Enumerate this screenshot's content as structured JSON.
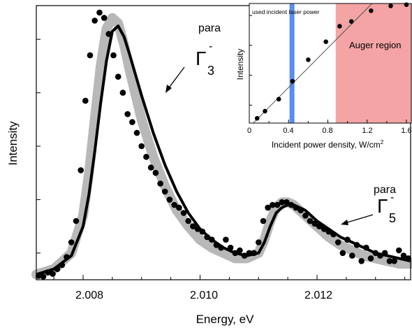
{
  "chart_data": [
    {
      "type": "line",
      "xlabel": "Energy, eV",
      "ylabel": "Intensity",
      "xlim": [
        2.0072,
        2.0136
      ],
      "ylim": [
        0,
        1.0
      ],
      "x_ticks": [
        "2.008",
        "2.010",
        "2.012"
      ],
      "x_tick_values": [
        2.008,
        2.01,
        2.012
      ],
      "y_tick_labels_shown": false,
      "annotations": [
        {
          "text": "para",
          "symbol": "Γ",
          "superscript": "-",
          "subscript": "3"
        },
        {
          "text": "para",
          "symbol": "Γ",
          "superscript": "-",
          "subscript": "5"
        }
      ],
      "colors": {
        "data_points": "#000000",
        "fit_line": "#000000",
        "model_band": "#b8b8b8"
      },
      "series": [
        {
          "type": "scatter",
          "x": [
            2.00724,
            2.00732,
            2.0074,
            2.00748,
            2.00756,
            2.00764,
            2.00772,
            2.0078,
            2.00788,
            2.00796,
            2.00804,
            2.00812,
            2.0082,
            2.00828,
            2.00836,
            2.00844,
            2.00852,
            2.0086,
            2.00868,
            2.00876,
            2.00884,
            2.00892,
            2.009,
            2.00908,
            2.00916,
            2.00924,
            2.00932,
            2.0094,
            2.00948,
            2.00956,
            2.00964,
            2.00972,
            2.0098,
            2.00988,
            2.00996,
            2.01004,
            2.01012,
            2.0102,
            2.01028,
            2.01036,
            2.01044,
            2.01052,
            2.0106,
            2.01068,
            2.01076,
            2.01084,
            2.01092,
            2.011,
            2.01108,
            2.01116,
            2.01124,
            2.01132,
            2.0114,
            2.01148,
            2.01156,
            2.01164,
            2.01172,
            2.0118,
            2.01188,
            2.01196,
            2.01204,
            2.01212,
            2.0122,
            2.01228,
            2.01236,
            2.01244,
            2.01252,
            2.0126,
            2.01268,
            2.01276,
            2.01284,
            2.01292,
            2.013,
            2.01308,
            2.01316,
            2.01324,
            2.01332,
            2.0134,
            2.01348,
            2.01356
          ],
          "y": [
            0.015,
            0.012,
            0.028,
            0.022,
            0.04,
            0.055,
            0.085,
            0.14,
            0.22,
            0.41,
            0.67,
            0.84,
            0.97,
            1.0,
            0.98,
            0.92,
            0.84,
            0.76,
            0.7,
            0.62,
            0.59,
            0.55,
            0.5,
            0.46,
            0.42,
            0.4,
            0.36,
            0.33,
            0.3,
            0.28,
            0.27,
            0.25,
            0.22,
            0.2,
            0.19,
            0.18,
            0.16,
            0.15,
            0.13,
            0.12,
            0.15,
            0.12,
            0.1,
            0.11,
            0.09,
            0.1,
            0.1,
            0.14,
            0.22,
            0.27,
            0.28,
            0.28,
            0.29,
            0.29,
            0.28,
            0.27,
            0.26,
            0.24,
            0.22,
            0.21,
            0.2,
            0.19,
            0.18,
            0.17,
            0.14,
            0.1,
            0.15,
            0.09,
            0.13,
            0.07,
            0.12,
            0.08,
            0.1,
            0.09,
            0.1,
            0.07,
            0.07,
            0.11,
            0.09,
            0.08
          ]
        },
        {
          "type": "line",
          "x": [
            2.0072,
            2.0075,
            2.0078,
            2.008,
            2.0081,
            2.0082,
            2.0083,
            2.0084,
            2.0085,
            2.0086,
            2.0087,
            2.0088,
            2.009,
            2.0092,
            2.0094,
            2.0096,
            2.0098,
            2.01,
            2.0102,
            2.0104,
            2.0106,
            2.0108,
            2.011,
            2.0111,
            2.0112,
            2.0113,
            2.0114,
            2.0115,
            2.0116,
            2.0117,
            2.0118,
            2.012,
            2.0122,
            2.0124,
            2.0126,
            2.0128,
            2.013,
            2.0132,
            2.0134,
            2.0136
          ],
          "y": [
            0.02,
            0.04,
            0.09,
            0.2,
            0.32,
            0.48,
            0.66,
            0.82,
            0.93,
            0.95,
            0.91,
            0.84,
            0.69,
            0.55,
            0.43,
            0.33,
            0.25,
            0.19,
            0.15,
            0.12,
            0.1,
            0.09,
            0.1,
            0.14,
            0.2,
            0.25,
            0.27,
            0.28,
            0.28,
            0.27,
            0.26,
            0.22,
            0.19,
            0.16,
            0.14,
            0.12,
            0.1,
            0.09,
            0.08,
            0.07
          ]
        },
        {
          "type": "line",
          "x": [
            2.0072,
            2.0075,
            2.0078,
            2.008,
            2.0081,
            2.0082,
            2.0083,
            2.0084,
            2.0085,
            2.0086,
            2.0087,
            2.0088,
            2.009,
            2.0092,
            2.0094,
            2.0096,
            2.0098,
            2.01,
            2.0102,
            2.0104,
            2.0106,
            2.0108,
            2.011,
            2.0111,
            2.0112,
            2.0113,
            2.0114,
            2.0115,
            2.0116,
            2.0117,
            2.0118,
            2.012,
            2.0122,
            2.0124,
            2.0126,
            2.0128,
            2.013,
            2.0132,
            2.0134,
            2.0136
          ],
          "y": [
            0.02,
            0.04,
            0.1,
            0.24,
            0.4,
            0.6,
            0.8,
            0.94,
            0.98,
            0.96,
            0.88,
            0.78,
            0.6,
            0.46,
            0.35,
            0.26,
            0.2,
            0.15,
            0.12,
            0.1,
            0.08,
            0.08,
            0.1,
            0.15,
            0.22,
            0.27,
            0.29,
            0.29,
            0.28,
            0.26,
            0.24,
            0.2,
            0.16,
            0.13,
            0.11,
            0.09,
            0.08,
            0.07,
            0.06,
            0.06
          ]
        }
      ]
    },
    {
      "type": "scatter",
      "xlabel": "Incident power density, W/cm",
      "xlabel_superscript": "2",
      "ylabel": "Intensity",
      "xlim": [
        0,
        1.65
      ],
      "ylim": [
        0,
        1.0
      ],
      "x_ticks": [
        "0",
        "0.4",
        "0.8",
        "1.2",
        "1.6"
      ],
      "x_tick_values": [
        0,
        0.4,
        0.8,
        1.2,
        1.6
      ],
      "annotations": [
        {
          "text": "used incident laser power"
        },
        {
          "text": "Auger region"
        }
      ],
      "regions": [
        {
          "x_from": 0.41,
          "x_to": 0.46,
          "color": "#5b8def"
        },
        {
          "x_from": 0.88,
          "x_to": 1.65,
          "color": "#f4a4a4"
        }
      ],
      "series": [
        {
          "type": "scatter",
          "x": [
            0.08,
            0.16,
            0.3,
            0.44,
            0.6,
            0.78,
            0.92,
            1.04,
            1.24,
            1.44,
            1.6
          ],
          "y": [
            0.04,
            0.1,
            0.2,
            0.35,
            0.53,
            0.68,
            0.81,
            0.85,
            0.94,
            0.98,
            0.99
          ]
        },
        {
          "type": "line",
          "x": [
            0.04,
            1.25
          ],
          "y": [
            0.0,
            1.0
          ]
        }
      ]
    }
  ]
}
